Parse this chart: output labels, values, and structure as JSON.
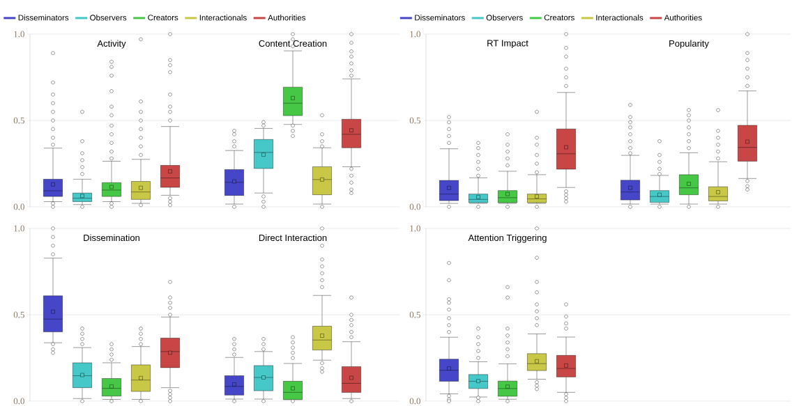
{
  "chart_data": [
    {
      "type": "box",
      "categories": [
        "Activity",
        "Content Creation"
      ],
      "ylim": [
        0,
        1
      ],
      "yticks": [
        {
          "value": 0,
          "label": "0.0"
        },
        {
          "value": 0.5,
          "label": "0.5"
        },
        {
          "value": 1,
          "label": "1.0"
        }
      ],
      "grid": "y",
      "legend": "top",
      "marker": "circle",
      "series": [
        {
          "name": "Disseminators",
          "color": "#4646c8",
          "boxes": [
            {
              "low": 0.03,
              "q1": 0.06,
              "median": 0.093,
              "q3": 0.16,
              "high": 0.34,
              "mean": 0.13,
              "outliers": [
                0.89,
                0.72,
                0.65,
                0.6,
                0.55,
                0.5,
                0.45,
                0.4,
                0.36,
                0.02,
                0.0
              ]
            },
            {
              "low": 0.016,
              "q1": 0.066,
              "median": 0.142,
              "q3": 0.216,
              "high": 0.326,
              "mean": 0.147,
              "outliers": [
                0.44,
                0.42,
                0.38,
                0.35,
                0.0
              ]
            }
          ]
        },
        {
          "name": "Observers",
          "color": "#46c8c8",
          "boxes": [
            {
              "low": 0.013,
              "q1": 0.03,
              "median": 0.05,
              "q3": 0.08,
              "high": 0.16,
              "mean": 0.063,
              "outliers": [
                0.55,
                0.38,
                0.31,
                0.27,
                0.23,
                0.19,
                0.0
              ]
            },
            {
              "low": 0.08,
              "q1": 0.222,
              "median": 0.315,
              "q3": 0.39,
              "high": 0.454,
              "mean": 0.302,
              "outliers": [
                0.49,
                0.47,
                0.06,
                0.03,
                0.0
              ]
            }
          ]
        },
        {
          "name": "Creators",
          "color": "#46c846",
          "boxes": [
            {
              "low": 0.03,
              "q1": 0.06,
              "median": 0.097,
              "q3": 0.14,
              "high": 0.264,
              "mean": 0.115,
              "outliers": [
                0.84,
                0.81,
                0.76,
                0.67,
                0.58,
                0.53,
                0.47,
                0.42,
                0.37,
                0.32,
                0.28,
                0.02,
                0.0
              ]
            },
            {
              "low": 0.477,
              "q1": 0.528,
              "median": 0.6,
              "q3": 0.693,
              "high": 0.903,
              "mean": 0.63,
              "outliers": [
                1.0,
                0.97,
                0.93,
                0.47,
                0.44,
                0.41
              ]
            }
          ]
        },
        {
          "name": "Interactionals",
          "color": "#c8c846",
          "boxes": [
            {
              "low": 0.02,
              "q1": 0.043,
              "median": 0.086,
              "q3": 0.147,
              "high": 0.275,
              "mean": 0.11,
              "outliers": [
                0.97,
                0.61,
                0.55,
                0.5,
                0.45,
                0.4,
                0.35,
                0.3,
                0.01
              ]
            },
            {
              "low": 0.016,
              "q1": 0.07,
              "median": 0.158,
              "q3": 0.232,
              "high": 0.342,
              "mean": 0.158,
              "outliers": [
                0.53,
                0.42,
                0.38,
                0.35,
                0.0
              ]
            }
          ]
        },
        {
          "name": "Authorities",
          "color": "#c84646",
          "boxes": [
            {
              "low": 0.067,
              "q1": 0.113,
              "median": 0.167,
              "q3": 0.24,
              "high": 0.465,
              "mean": 0.205,
              "outliers": [
                1.0,
                0.85,
                0.82,
                0.78,
                0.65,
                0.58,
                0.55,
                0.5,
                0.05,
                0.03,
                0.01
              ]
            },
            {
              "low": 0.232,
              "q1": 0.342,
              "median": 0.42,
              "q3": 0.507,
              "high": 0.741,
              "mean": 0.443,
              "outliers": [
                1.0,
                0.95,
                0.9,
                0.87,
                0.83,
                0.79,
                0.76,
                0.22,
                0.18,
                0.14,
                0.1,
                0.08
              ]
            }
          ]
        }
      ]
    },
    {
      "type": "box",
      "categories": [
        "RT Impact",
        "Popularity"
      ],
      "ylim": [
        0,
        1
      ],
      "yticks": [
        {
          "value": 0,
          "label": "0.0"
        },
        {
          "value": 0.5,
          "label": "0.5"
        },
        {
          "value": 1,
          "label": "1.0"
        }
      ],
      "grid": "y",
      "legend": "top",
      "marker": "circle",
      "series": [
        {
          "name": "Disseminators",
          "color": "#4646c8",
          "boxes": [
            {
              "low": 0.02,
              "q1": 0.036,
              "median": 0.074,
              "q3": 0.153,
              "high": 0.336,
              "mean": 0.11,
              "outliers": [
                0.52,
                0.49,
                0.45,
                0.41,
                0.37,
                0.0
              ]
            },
            {
              "low": 0.016,
              "q1": 0.04,
              "median": 0.086,
              "q3": 0.154,
              "high": 0.298,
              "mean": 0.11,
              "outliers": [
                0.59,
                0.52,
                0.49,
                0.46,
                0.42,
                0.38,
                0.34,
                0.31,
                0.0
              ]
            }
          ]
        },
        {
          "name": "Observers",
          "color": "#46c8c8",
          "boxes": [
            {
              "low": 0.02,
              "q1": 0.024,
              "median": 0.043,
              "q3": 0.074,
              "high": 0.168,
              "mean": 0.057,
              "outliers": [
                0.37,
                0.34,
                0.3,
                0.26,
                0.22,
                0.18,
                0.0
              ]
            },
            {
              "low": 0.016,
              "q1": 0.026,
              "median": 0.06,
              "q3": 0.094,
              "high": 0.182,
              "mean": 0.07,
              "outliers": [
                0.38,
                0.3,
                0.26,
                0.22,
                0.19,
                0.0
              ]
            }
          ]
        },
        {
          "name": "Creators",
          "color": "#46c846",
          "boxes": [
            {
              "low": 0.02,
              "q1": 0.024,
              "median": 0.053,
              "q3": 0.094,
              "high": 0.206,
              "mean": 0.074,
              "outliers": [
                0.42,
                0.36,
                0.32,
                0.28,
                0.24,
                0.0
              ]
            },
            {
              "low": 0.016,
              "q1": 0.07,
              "median": 0.11,
              "q3": 0.186,
              "high": 0.313,
              "mean": 0.133,
              "outliers": [
                0.56,
                0.53,
                0.5,
                0.46,
                0.42,
                0.38,
                0.34,
                0.0
              ]
            }
          ]
        },
        {
          "name": "Interactionals",
          "color": "#c8c846",
          "boxes": [
            {
              "low": 0.02,
              "q1": 0.024,
              "median": 0.046,
              "q3": 0.074,
              "high": 0.186,
              "mean": 0.06,
              "outliers": [
                0.55,
                0.4,
                0.36,
                0.3,
                0.25,
                0.2,
                0.0
              ]
            },
            {
              "low": 0.016,
              "q1": 0.034,
              "median": 0.06,
              "q3": 0.116,
              "high": 0.261,
              "mean": 0.085,
              "outliers": [
                0.56,
                0.44,
                0.4,
                0.36,
                0.32,
                0.28,
                0.0
              ]
            }
          ]
        },
        {
          "name": "Authorities",
          "color": "#c84646",
          "boxes": [
            {
              "low": 0.112,
              "q1": 0.218,
              "median": 0.307,
              "q3": 0.451,
              "high": 0.662,
              "mean": 0.345,
              "outliers": [
                1.0,
                0.92,
                0.87,
                0.8,
                0.75,
                0.7,
                0.09,
                0.07,
                0.05,
                0.03
              ]
            },
            {
              "low": 0.164,
              "q1": 0.264,
              "median": 0.344,
              "q3": 0.472,
              "high": 0.671,
              "mean": 0.377,
              "outliers": [
                1.0,
                0.89,
                0.85,
                0.8,
                0.75,
                0.7,
                0.15,
                0.12,
                0.1
              ]
            }
          ]
        }
      ]
    },
    {
      "type": "box",
      "categories": [
        "Dissemination",
        "Direct Interaction"
      ],
      "ylim": [
        0,
        1
      ],
      "yticks": [
        {
          "value": 0,
          "label": "0.0"
        },
        {
          "value": 0.5,
          "label": "0.5"
        },
        {
          "value": 1,
          "label": "1.0"
        }
      ],
      "grid": "y",
      "marker": "circle",
      "series": [
        {
          "color": "#4646c8",
          "boxes": [
            {
              "low": 0.338,
              "q1": 0.401,
              "median": 0.475,
              "q3": 0.61,
              "high": 0.828,
              "mean": 0.518,
              "outliers": [
                1.0,
                0.95,
                0.9,
                0.85,
                0.33,
                0.3,
                0.28
              ]
            },
            {
              "low": 0.012,
              "q1": 0.035,
              "median": 0.085,
              "q3": 0.147,
              "high": 0.253,
              "mean": 0.097,
              "outliers": [
                0.36,
                0.33,
                0.3,
                0.27,
                0.0
              ]
            }
          ]
        },
        {
          "color": "#46c8c8",
          "boxes": [
            {
              "low": 0.015,
              "q1": 0.078,
              "median": 0.147,
              "q3": 0.222,
              "high": 0.31,
              "mean": 0.151,
              "outliers": [
                0.42,
                0.39,
                0.36,
                0.33,
                0.0
              ]
            },
            {
              "low": 0.012,
              "q1": 0.06,
              "median": 0.137,
              "q3": 0.206,
              "high": 0.287,
              "mean": 0.137,
              "outliers": [
                0.36,
                0.33,
                0.3,
                0.0
              ]
            }
          ]
        },
        {
          "color": "#46c846",
          "boxes": [
            {
              "low": 0.01,
              "q1": 0.029,
              "median": 0.074,
              "q3": 0.131,
              "high": 0.222,
              "mean": 0.085,
              "outliers": [
                0.33,
                0.3,
                0.27,
                0.24,
                0.0
              ]
            },
            {
              "low": 0.009,
              "q1": 0.009,
              "median": 0.051,
              "q3": 0.115,
              "high": 0.218,
              "mean": 0.074,
              "outliers": [
                0.37,
                0.34,
                0.31,
                0.28,
                0.25,
                0.0
              ]
            }
          ]
        },
        {
          "color": "#c8c846",
          "boxes": [
            {
              "low": 0.01,
              "q1": 0.056,
              "median": 0.122,
              "q3": 0.21,
              "high": 0.316,
              "mean": 0.134,
              "outliers": [
                0.42,
                0.39,
                0.36,
                0.33,
                0.0
              ]
            },
            {
              "low": 0.237,
              "q1": 0.296,
              "median": 0.354,
              "q3": 0.434,
              "high": 0.612,
              "mean": 0.379,
              "outliers": [
                1.0,
                0.9,
                0.82,
                0.78,
                0.74,
                0.7,
                0.66,
                0.22,
                0.19,
                0.17
              ]
            }
          ]
        },
        {
          "color": "#c84646",
          "boxes": [
            {
              "low": 0.078,
              "q1": 0.194,
              "median": 0.287,
              "q3": 0.365,
              "high": 0.487,
              "mean": 0.28,
              "outliers": [
                0.69,
                0.6,
                0.57,
                0.54,
                0.5,
                0.06,
                0.04,
                0.02,
                0.0
              ]
            },
            {
              "low": 0.015,
              "q1": 0.05,
              "median": 0.103,
              "q3": 0.2,
              "high": 0.344,
              "mean": 0.135,
              "outliers": [
                0.6,
                0.5,
                0.47,
                0.44,
                0.4,
                0.37,
                0.0
              ]
            }
          ]
        }
      ]
    },
    {
      "type": "box",
      "categories": [
        "Attention Triggering",
        null
      ],
      "ylim": [
        0,
        1
      ],
      "yticks": [
        {
          "value": 0,
          "label": "0.0"
        },
        {
          "value": 0.5,
          "label": "0.5"
        },
        {
          "value": 1,
          "label": "1.0"
        }
      ],
      "grid": "y",
      "marker": "circle",
      "series": [
        {
          "color": "#4646c8",
          "boxes": [
            {
              "low": 0.042,
              "q1": 0.115,
              "median": 0.179,
              "q3": 0.243,
              "high": 0.37,
              "mean": 0.189,
              "outliers": [
                0.8,
                0.7,
                0.59,
                0.57,
                0.53,
                0.48,
                0.44,
                0.4,
                0.03,
                0.01,
                0.0
              ]
            },
            null
          ]
        },
        {
          "color": "#46c8c8",
          "boxes": [
            {
              "low": 0.024,
              "q1": 0.073,
              "median": 0.115,
              "q3": 0.154,
              "high": 0.228,
              "mean": 0.116,
              "outliers": [
                0.42,
                0.37,
                0.33,
                0.29,
                0.25,
                0.02,
                0.0
              ]
            },
            null
          ]
        },
        {
          "color": "#46c846",
          "boxes": [
            {
              "low": 0.011,
              "q1": 0.028,
              "median": 0.073,
              "q3": 0.116,
              "high": 0.216,
              "mean": 0.084,
              "outliers": [
                0.66,
                0.6,
                0.42,
                0.38,
                0.34,
                0.3,
                0.26,
                0.0
              ]
            },
            null
          ]
        },
        {
          "color": "#c8c846",
          "boxes": [
            {
              "low": 0.127,
              "q1": 0.177,
              "median": 0.217,
              "q3": 0.275,
              "high": 0.389,
              "mean": 0.231,
              "outliers": [
                1.0,
                0.83,
                0.69,
                0.63,
                0.56,
                0.52,
                0.48,
                0.44,
                0.11,
                0.09,
                0.07
              ]
            },
            null
          ]
        },
        {
          "color": "#c84646",
          "boxes": [
            {
              "low": 0.051,
              "q1": 0.14,
              "median": 0.189,
              "q3": 0.265,
              "high": 0.371,
              "mean": 0.206,
              "outliers": [
                0.56,
                0.49,
                0.45,
                0.42,
                0.04,
                0.02,
                0.0
              ]
            },
            null
          ]
        }
      ]
    }
  ]
}
